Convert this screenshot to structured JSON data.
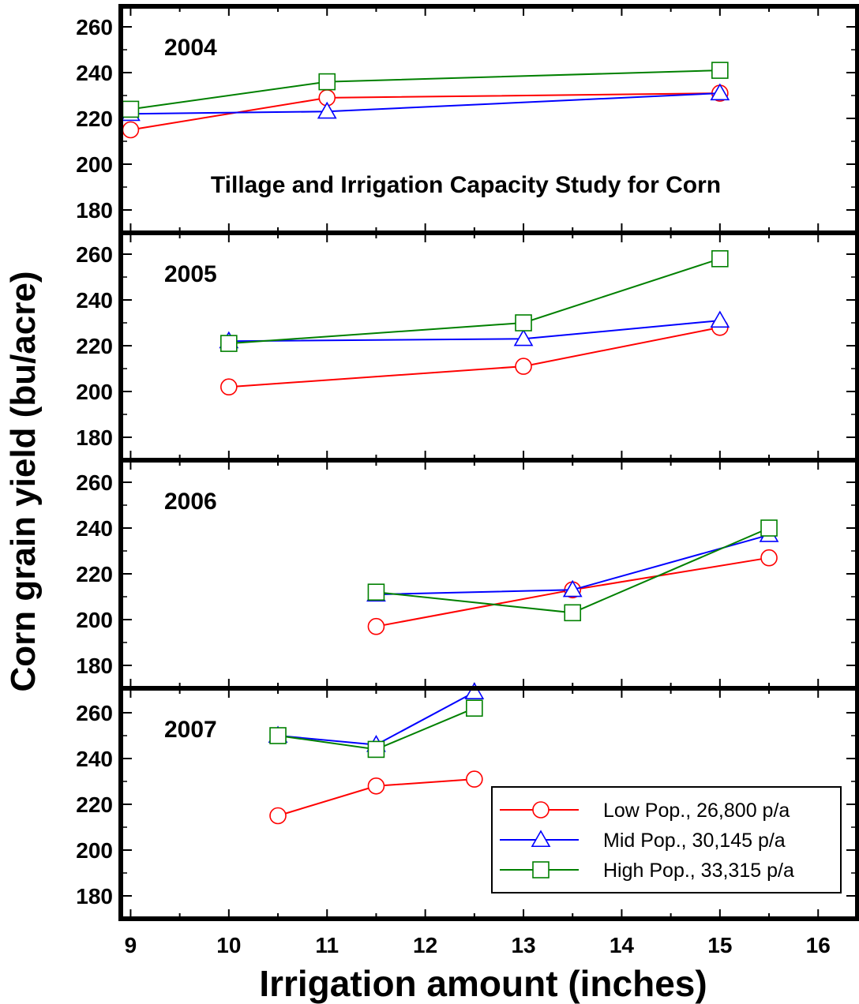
{
  "chart_data": {
    "type": "line",
    "title": "Tillage and Irrigation Capacity Study for Corn",
    "xlabel": "Irrigation amount (inches)",
    "ylabel": "Corn grain yield (bu/acre)",
    "xlim": [
      8.9,
      16.4
    ],
    "ylim": [
      170,
      270
    ],
    "x_ticks": [
      "9",
      "10",
      "11",
      "12",
      "13",
      "14",
      "15",
      "16"
    ],
    "y_ticks": [
      "180",
      "200",
      "220",
      "240",
      "260"
    ],
    "legend": {
      "placement": "bottom-right of last panel",
      "entries": [
        {
          "label": "Low Pop., 26,800 p/a",
          "color": "#ff0000",
          "marker": "circle"
        },
        {
          "label": "Mid Pop., 30,145 p/a",
          "color": "#0000ff",
          "marker": "triangle"
        },
        {
          "label": "High Pop., 33,315 p/a",
          "color": "#008000",
          "marker": "square"
        }
      ]
    },
    "panels": [
      {
        "year": "2004",
        "series": [
          {
            "name": "Low Pop., 26,800 p/a",
            "x": [
              9,
              11,
              15
            ],
            "y": [
              215,
              229,
              231
            ]
          },
          {
            "name": "Mid Pop., 30,145 p/a",
            "x": [
              9,
              11,
              15
            ],
            "y": [
              222,
              223,
              231
            ]
          },
          {
            "name": "High Pop., 33,315 p/a",
            "x": [
              9,
              11,
              15
            ],
            "y": [
              224,
              236,
              241
            ]
          }
        ]
      },
      {
        "year": "2005",
        "series": [
          {
            "name": "Low Pop., 26,800 p/a",
            "x": [
              10,
              13,
              15
            ],
            "y": [
              202,
              211,
              228
            ]
          },
          {
            "name": "Mid Pop., 30,145 p/a",
            "x": [
              10,
              13,
              15
            ],
            "y": [
              222,
              223,
              231
            ]
          },
          {
            "name": "High Pop., 33,315 p/a",
            "x": [
              10,
              13,
              15
            ],
            "y": [
              221,
              230,
              258
            ]
          }
        ]
      },
      {
        "year": "2006",
        "series": [
          {
            "name": "Low Pop., 26,800 p/a",
            "x": [
              11.5,
              13.5,
              15.5
            ],
            "y": [
              197,
              213,
              227
            ]
          },
          {
            "name": "Mid Pop., 30,145 p/a",
            "x": [
              11.5,
              13.5,
              15.5
            ],
            "y": [
              211,
              213,
              237
            ]
          },
          {
            "name": "High Pop., 33,315 p/a",
            "x": [
              11.5,
              13.5,
              15.5
            ],
            "y": [
              212,
              203,
              240
            ]
          }
        ]
      },
      {
        "year": "2007",
        "series": [
          {
            "name": "Low Pop., 26,800 p/a",
            "x": [
              10.5,
              11.5,
              12.5
            ],
            "y": [
              215,
              228,
              231
            ]
          },
          {
            "name": "Mid Pop., 30,145 p/a",
            "x": [
              10.5,
              11.5,
              12.5
            ],
            "y": [
              250,
              246,
              269
            ]
          },
          {
            "name": "High Pop., 33,315 p/a",
            "x": [
              10.5,
              11.5,
              12.5
            ],
            "y": [
              250,
              244,
              262
            ]
          }
        ]
      }
    ]
  }
}
